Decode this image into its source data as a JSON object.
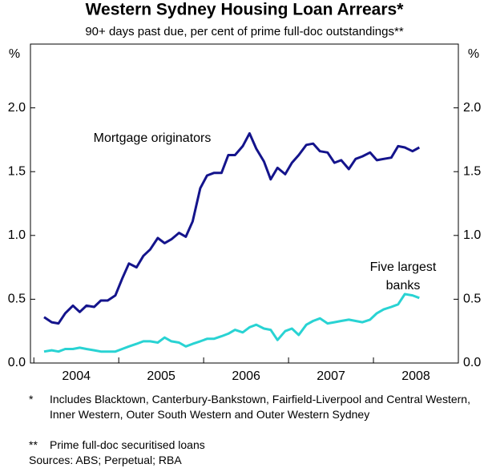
{
  "chart_data": {
    "type": "line",
    "title": "Western Sydney Housing Loan Arrears*",
    "subtitle": "90+ days past due, per cent of prime full-doc outstandings**",
    "y_unit": "%",
    "x": [
      2004.12,
      2004.21,
      2004.29,
      2004.37,
      2004.46,
      2004.54,
      2004.62,
      2004.71,
      2004.79,
      2004.87,
      2004.96,
      2005.04,
      2005.12,
      2005.21,
      2005.29,
      2005.37,
      2005.46,
      2005.54,
      2005.62,
      2005.71,
      2005.79,
      2005.87,
      2005.96,
      2006.04,
      2006.12,
      2006.21,
      2006.29,
      2006.37,
      2006.46,
      2006.54,
      2006.62,
      2006.71,
      2006.79,
      2006.87,
      2006.96,
      2007.04,
      2007.12,
      2007.21,
      2007.29,
      2007.37,
      2007.46,
      2007.54,
      2007.62,
      2007.71,
      2007.79,
      2007.87,
      2007.96,
      2008.04,
      2008.12,
      2008.21,
      2008.29,
      2008.37,
      2008.46,
      2008.54
    ],
    "series": [
      {
        "name": "Mortgage originators",
        "color": "#14148c",
        "values": [
          0.36,
          0.32,
          0.31,
          0.39,
          0.45,
          0.4,
          0.45,
          0.44,
          0.49,
          0.49,
          0.53,
          0.66,
          0.78,
          0.75,
          0.84,
          0.89,
          0.98,
          0.94,
          0.97,
          1.02,
          0.99,
          1.11,
          1.37,
          1.47,
          1.49,
          1.49,
          1.63,
          1.63,
          1.7,
          1.8,
          1.68,
          1.58,
          1.44,
          1.53,
          1.48,
          1.57,
          1.63,
          1.71,
          1.72,
          1.66,
          1.65,
          1.57,
          1.59,
          1.52,
          1.6,
          1.62,
          1.65,
          1.59,
          1.6,
          1.61,
          1.7,
          1.69,
          1.66,
          1.69
        ]
      },
      {
        "name": "Five largest banks",
        "color": "#29d3d3",
        "values": [
          0.09,
          0.1,
          0.09,
          0.11,
          0.11,
          0.12,
          0.11,
          0.1,
          0.09,
          0.09,
          0.09,
          0.11,
          0.13,
          0.15,
          0.17,
          0.17,
          0.16,
          0.2,
          0.17,
          0.16,
          0.13,
          0.15,
          0.17,
          0.19,
          0.19,
          0.21,
          0.23,
          0.26,
          0.24,
          0.28,
          0.3,
          0.27,
          0.26,
          0.18,
          0.25,
          0.27,
          0.22,
          0.3,
          0.33,
          0.35,
          0.31,
          0.32,
          0.33,
          0.34,
          0.33,
          0.32,
          0.34,
          0.39,
          0.42,
          0.44,
          0.46,
          0.54,
          0.53,
          0.51
        ]
      }
    ],
    "xlim": [
      2003.96,
      2009
    ],
    "xticks": [
      {
        "value": 2004.5,
        "label": "2004"
      },
      {
        "value": 2005.5,
        "label": "2005"
      },
      {
        "value": 2006.5,
        "label": "2006"
      },
      {
        "value": 2007.5,
        "label": "2007"
      },
      {
        "value": 2008.5,
        "label": "2008"
      }
    ],
    "x_minor_ticks": [
      2004,
      2005,
      2006,
      2007,
      2008
    ],
    "ylim": [
      0,
      2.5
    ],
    "yticks": [
      {
        "value": 0,
        "label": "0.0"
      },
      0.5,
      {
        "value": 1,
        "label": "1.0"
      },
      1.5,
      {
        "value": 2,
        "label": "2.0"
      }
    ],
    "grid": false,
    "notes": [
      {
        "marker": "*",
        "text": "Includes Blacktown, Canterbury-Bankstown, Fairfield-Liverpool and Central Western, Inner Western, Outer South Western and Outer Western Sydney"
      },
      {
        "marker": "**",
        "text": "Prime full-doc securitised loans"
      }
    ],
    "sources": "Sources: ABS; Perpetual; RBA"
  }
}
